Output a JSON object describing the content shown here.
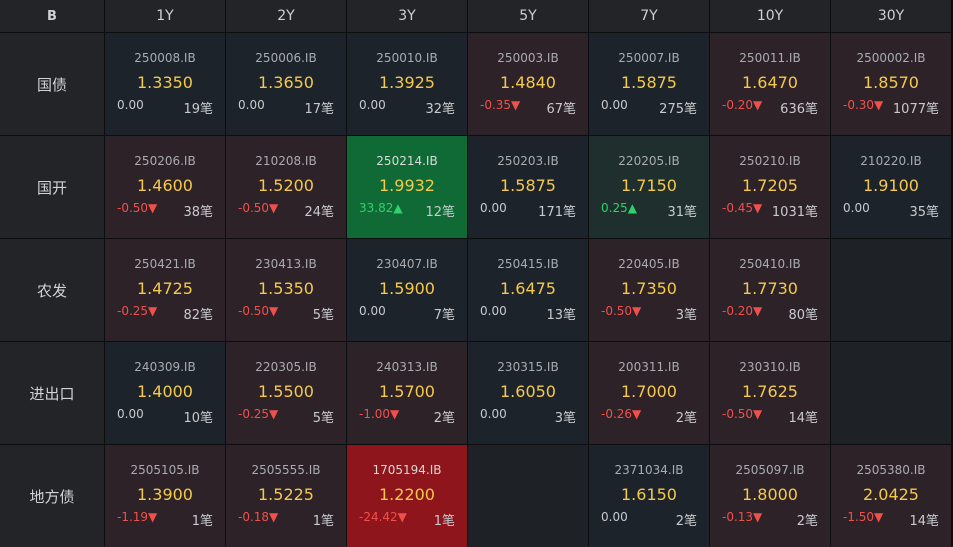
{
  "header": {
    "logo": "B",
    "tenors": [
      "1Y",
      "2Y",
      "3Y",
      "5Y",
      "7Y",
      "10Y",
      "30Y"
    ]
  },
  "rows": [
    {
      "label": "国债",
      "cells": [
        {
          "code": "250008.IB",
          "yield": "1.3350",
          "change": "0.00",
          "count": "19笔",
          "state": "neutral"
        },
        {
          "code": "250006.IB",
          "yield": "1.3650",
          "change": "0.00",
          "count": "17笔",
          "state": "neutral"
        },
        {
          "code": "250010.IB",
          "yield": "1.3925",
          "change": "0.00",
          "count": "32笔",
          "state": "neutral"
        },
        {
          "code": "250003.IB",
          "yield": "1.4840",
          "change": "-0.35▼",
          "count": "67笔",
          "state": "down"
        },
        {
          "code": "250007.IB",
          "yield": "1.5875",
          "change": "0.00",
          "count": "275笔",
          "state": "neutral"
        },
        {
          "code": "250011.IB",
          "yield": "1.6470",
          "change": "-0.20▼",
          "count": "636笔",
          "state": "down"
        },
        {
          "code": "2500002.IB",
          "yield": "1.8570",
          "change": "-0.30▼",
          "count": "1077笔",
          "state": "down"
        }
      ]
    },
    {
      "label": "国开",
      "cells": [
        {
          "code": "250206.IB",
          "yield": "1.4600",
          "change": "-0.50▼",
          "count": "38笔",
          "state": "down"
        },
        {
          "code": "210208.IB",
          "yield": "1.5200",
          "change": "-0.50▼",
          "count": "24笔",
          "state": "down"
        },
        {
          "code": "250214.IB",
          "yield": "1.9932",
          "change": "33.82▲",
          "count": "12笔",
          "state": "strong-up"
        },
        {
          "code": "250203.IB",
          "yield": "1.5875",
          "change": "0.00",
          "count": "171笔",
          "state": "neutral"
        },
        {
          "code": "220205.IB",
          "yield": "1.7150",
          "change": "0.25▲",
          "count": "31笔",
          "state": "up"
        },
        {
          "code": "250210.IB",
          "yield": "1.7205",
          "change": "-0.45▼",
          "count": "1031笔",
          "state": "down"
        },
        {
          "code": "210220.IB",
          "yield": "1.9100",
          "change": "0.00",
          "count": "35笔",
          "state": "neutral"
        }
      ]
    },
    {
      "label": "农发",
      "cells": [
        {
          "code": "250421.IB",
          "yield": "1.4725",
          "change": "-0.25▼",
          "count": "82笔",
          "state": "down"
        },
        {
          "code": "230413.IB",
          "yield": "1.5350",
          "change": "-0.50▼",
          "count": "5笔",
          "state": "down"
        },
        {
          "code": "230407.IB",
          "yield": "1.5900",
          "change": "0.00",
          "count": "7笔",
          "state": "neutral"
        },
        {
          "code": "250415.IB",
          "yield": "1.6475",
          "change": "0.00",
          "count": "13笔",
          "state": "neutral"
        },
        {
          "code": "220405.IB",
          "yield": "1.7350",
          "change": "-0.50▼",
          "count": "3笔",
          "state": "down"
        },
        {
          "code": "250410.IB",
          "yield": "1.7730",
          "change": "-0.20▼",
          "count": "80笔",
          "state": "down"
        },
        null
      ]
    },
    {
      "label": "进出口",
      "cells": [
        {
          "code": "240309.IB",
          "yield": "1.4000",
          "change": "0.00",
          "count": "10笔",
          "state": "neutral"
        },
        {
          "code": "220305.IB",
          "yield": "1.5500",
          "change": "-0.25▼",
          "count": "5笔",
          "state": "down"
        },
        {
          "code": "240313.IB",
          "yield": "1.5700",
          "change": "-1.00▼",
          "count": "2笔",
          "state": "down"
        },
        {
          "code": "230315.IB",
          "yield": "1.6050",
          "change": "0.00",
          "count": "3笔",
          "state": "neutral"
        },
        {
          "code": "200311.IB",
          "yield": "1.7000",
          "change": "-0.26▼",
          "count": "2笔",
          "state": "down"
        },
        {
          "code": "230310.IB",
          "yield": "1.7625",
          "change": "-0.50▼",
          "count": "14笔",
          "state": "down"
        },
        null
      ]
    },
    {
      "label": "地方债",
      "cells": [
        {
          "code": "2505105.IB",
          "yield": "1.3900",
          "change": "-1.19▼",
          "count": "1笔",
          "state": "down"
        },
        {
          "code": "2505555.IB",
          "yield": "1.5225",
          "change": "-0.18▼",
          "count": "1笔",
          "state": "down"
        },
        {
          "code": "1705194.IB",
          "yield": "1.2200",
          "change": "-24.42▼",
          "count": "1笔",
          "state": "strong-down"
        },
        null,
        {
          "code": "2371034.IB",
          "yield": "1.6150",
          "change": "0.00",
          "count": "2笔",
          "state": "neutral"
        },
        {
          "code": "2505097.IB",
          "yield": "1.8000",
          "change": "-0.13▼",
          "count": "2笔",
          "state": "down"
        },
        {
          "code": "2505380.IB",
          "yield": "2.0425",
          "change": "-1.50▼",
          "count": "14笔",
          "state": "down"
        }
      ]
    }
  ]
}
